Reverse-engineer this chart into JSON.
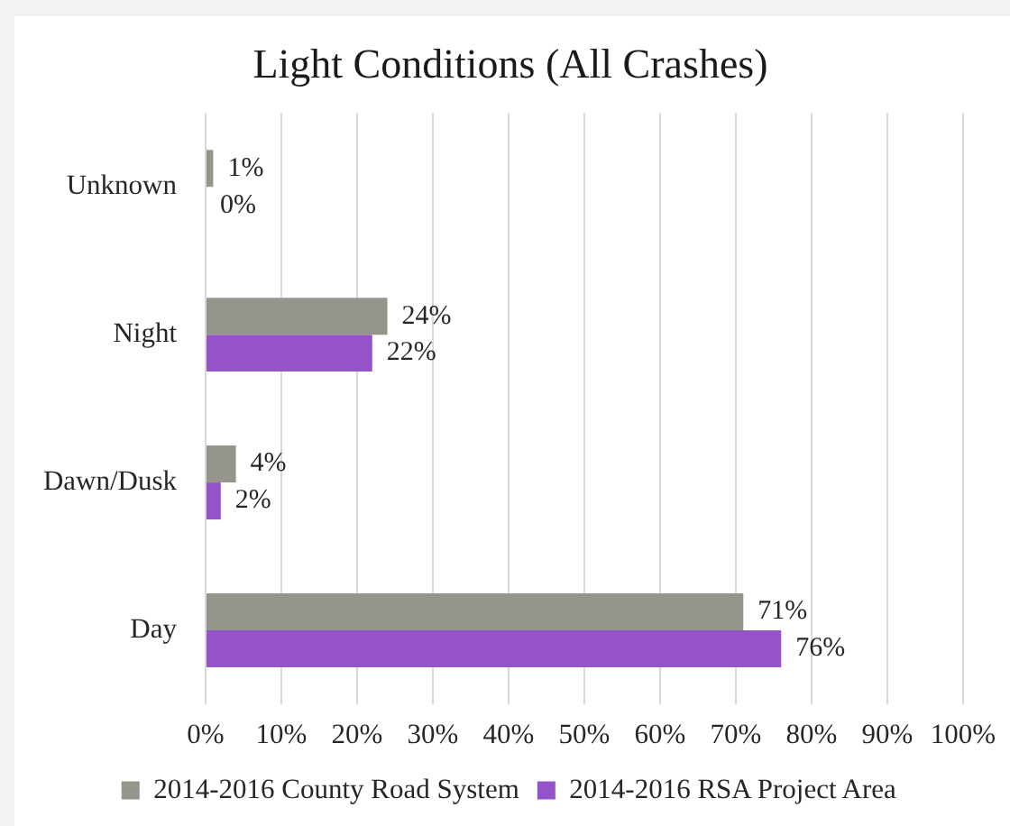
{
  "chart_data": {
    "type": "bar",
    "orientation": "horizontal",
    "title": "Light Conditions (All Crashes)",
    "categories": [
      "Unknown",
      "Night",
      "Dawn/Dusk",
      "Day"
    ],
    "series": [
      {
        "name": "2014-2016 County Road System",
        "color": "#95958c",
        "values": [
          1,
          24,
          4,
          71
        ],
        "value_labels": [
          "1%",
          "24%",
          "4%",
          "71%"
        ]
      },
      {
        "name": "2014-2016 RSA Project Area",
        "color": "#9553c9",
        "values": [
          0,
          22,
          2,
          76
        ],
        "value_labels": [
          "0%",
          "22%",
          "2%",
          "76%"
        ]
      }
    ],
    "xlim": [
      0,
      100
    ],
    "xticks": [
      {
        "value": 0,
        "label": "0%"
      },
      {
        "value": 10,
        "label": "10%"
      },
      {
        "value": 20,
        "label": "20%"
      },
      {
        "value": 30,
        "label": "30%"
      },
      {
        "value": 40,
        "label": "40%"
      },
      {
        "value": 50,
        "label": "50%"
      },
      {
        "value": 60,
        "label": "60%"
      },
      {
        "value": 70,
        "label": "70%"
      },
      {
        "value": 80,
        "label": "80%"
      },
      {
        "value": 90,
        "label": "90%"
      },
      {
        "value": 100,
        "label": "100%"
      }
    ],
    "grid": "x",
    "legend": "bottom"
  }
}
